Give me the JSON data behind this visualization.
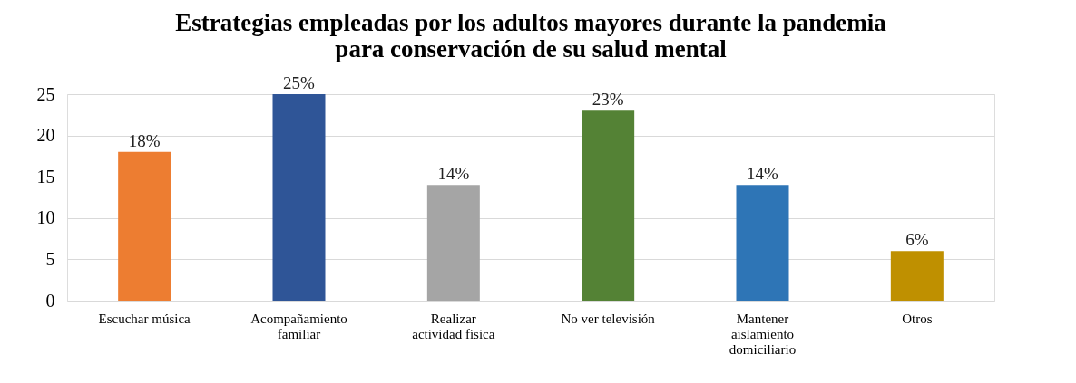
{
  "chart_data": {
    "type": "bar",
    "title": "Estrategias empleadas por los adultos mayores durante la pandemia para conservación de su salud mental",
    "categories": [
      "Escuchar música",
      "Acompañamiento familiar",
      "Realizar actividad física",
      "No ver televisión",
      "Mantener aislamiento domiciliario",
      "Otros"
    ],
    "values": [
      18,
      25,
      14,
      23,
      14,
      6
    ],
    "colors": [
      "#ed7d31",
      "#2f5597",
      "#a5a5a5",
      "#548235",
      "#2e75b6",
      "#bf9000"
    ],
    "value_labels": [
      "18%",
      "25%",
      "14%",
      "23%",
      "14%",
      "6%"
    ],
    "ylim": [
      0,
      25
    ],
    "yticks": [
      0,
      5,
      10,
      15,
      20,
      25
    ],
    "grid": "y",
    "legend": false
  }
}
